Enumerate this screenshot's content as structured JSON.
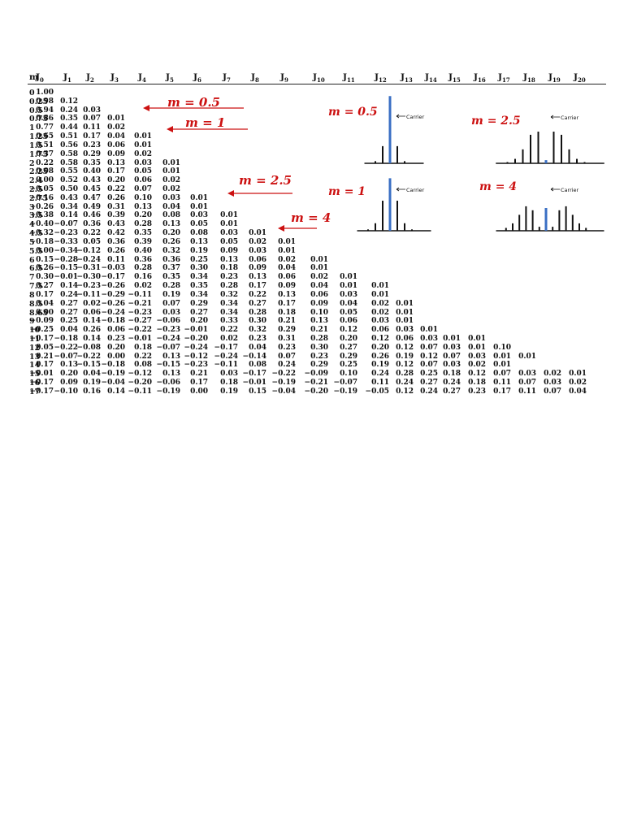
{
  "table": {
    "m_header": "m",
    "headers": [
      {
        "base": "J",
        "sub": "0"
      },
      {
        "base": "J",
        "sub": "1"
      },
      {
        "base": "J",
        "sub": "2"
      },
      {
        "base": "J",
        "sub": "3"
      },
      {
        "base": "J",
        "sub": "4"
      },
      {
        "base": "J",
        "sub": "5"
      },
      {
        "base": "J",
        "sub": "6"
      },
      {
        "base": "J",
        "sub": "7"
      },
      {
        "base": "J",
        "sub": "8"
      },
      {
        "base": "J",
        "sub": "9"
      },
      {
        "base": "J",
        "sub": "10"
      },
      {
        "base": "J",
        "sub": "11"
      },
      {
        "base": "J",
        "sub": "12"
      },
      {
        "base": "J",
        "sub": "13"
      },
      {
        "base": "J",
        "sub": "14"
      },
      {
        "base": "J",
        "sub": "15"
      },
      {
        "base": "J",
        "sub": "16"
      },
      {
        "base": "J",
        "sub": "17"
      },
      {
        "base": "J",
        "sub": "18"
      },
      {
        "base": "J",
        "sub": "19"
      },
      {
        "base": "J",
        "sub": "20"
      }
    ],
    "rows": [
      {
        "m": "0",
        "v": [
          "1.00"
        ]
      },
      {
        "m": "0.25",
        "v": [
          "0.98",
          "0.12"
        ]
      },
      {
        "m": "0.5",
        "v": [
          "0.94",
          "0.24",
          "0.03"
        ]
      },
      {
        "m": "0.75",
        "v": [
          "0.86",
          "0.35",
          "0.07",
          "0.01"
        ]
      },
      {
        "m": "1",
        "v": [
          "0.77",
          "0.44",
          "0.11",
          "0.02"
        ]
      },
      {
        "m": "1.25",
        "v": [
          "0.65",
          "0.51",
          "0.17",
          "0.04",
          "0.01"
        ]
      },
      {
        "m": "1.5",
        "v": [
          "0.51",
          "0.56",
          "0.23",
          "0.06",
          "0.01"
        ]
      },
      {
        "m": "1.75",
        "v": [
          "0.37",
          "0.58",
          "0.29",
          "0.09",
          "0.02"
        ]
      },
      {
        "m": "2",
        "v": [
          "0.22",
          "0.58",
          "0.35",
          "0.13",
          "0.03",
          "0.01"
        ]
      },
      {
        "m": "2.25",
        "v": [
          "0.08",
          "0.55",
          "0.40",
          "0.17",
          "0.05",
          "0.01"
        ]
      },
      {
        "m": "2.4",
        "v": [
          "0.00",
          "0.52",
          "0.43",
          "0.20",
          "0.06",
          "0.02"
        ]
      },
      {
        "m": "2.5",
        "v": [
          "−0.05",
          "0.50",
          "0.45",
          "0.22",
          "0.07",
          "0.02"
        ]
      },
      {
        "m": "2.75",
        "v": [
          "−0.16",
          "0.43",
          "0.47",
          "0.26",
          "0.10",
          "0.03",
          "0.01"
        ]
      },
      {
        "m": "3",
        "v": [
          "−0.26",
          "0.34",
          "0.49",
          "0.31",
          "0.13",
          "0.04",
          "0.01"
        ]
      },
      {
        "m": "3.5",
        "v": [
          "−0.38",
          "0.14",
          "0.46",
          "0.39",
          "0.20",
          "0.08",
          "0.03",
          "0.01"
        ]
      },
      {
        "m": "4",
        "v": [
          "−0.40",
          "−0.07",
          "0.36",
          "0.43",
          "0.28",
          "0.13",
          "0.05",
          "0.01"
        ]
      },
      {
        "m": "4.5",
        "v": [
          "−0.32",
          "−0.23",
          "0.22",
          "0.42",
          "0.35",
          "0.20",
          "0.08",
          "0.03",
          "0.01"
        ]
      },
      {
        "m": "5",
        "v": [
          "−0.18",
          "−0.33",
          "0.05",
          "0.36",
          "0.39",
          "0.26",
          "0.13",
          "0.05",
          "0.02",
          "0.01"
        ]
      },
      {
        "m": "5.5",
        "v": [
          "0.00",
          "−0.34",
          "−0.12",
          "0.26",
          "0.40",
          "0.32",
          "0.19",
          "0.09",
          "0.03",
          "0.01"
        ]
      },
      {
        "m": "6",
        "v": [
          "0.15",
          "−0.28",
          "−0.24",
          "0.11",
          "0.36",
          "0.36",
          "0.25",
          "0.13",
          "0.06",
          "0.02",
          "0.01"
        ]
      },
      {
        "m": "6.5",
        "v": [
          "0.26",
          "−0.15",
          "−0.31",
          "−0.03",
          "0.28",
          "0.37",
          "0.30",
          "0.18",
          "0.09",
          "0.04",
          "0.01"
        ]
      },
      {
        "m": "7",
        "v": [
          "0.30",
          "−0.01",
          "−0.30",
          "−0.17",
          "0.16",
          "0.35",
          "0.34",
          "0.23",
          "0.13",
          "0.06",
          "0.02",
          "0.01"
        ]
      },
      {
        "m": "7.5",
        "v": [
          "0.27",
          "0.14",
          "−0.23",
          "−0.26",
          "0.02",
          "0.28",
          "0.35",
          "0.28",
          "0.17",
          "0.09",
          "0.04",
          "0.01",
          "0.01"
        ]
      },
      {
        "m": "8",
        "v": [
          "0.17",
          "0.24",
          "−0.11",
          "−0.29",
          "−0.11",
          "0.19",
          "0.34",
          "0.32",
          "0.22",
          "0.13",
          "0.06",
          "0.03",
          "0.01"
        ]
      },
      {
        "m": "8.5",
        "v": [
          "0.04",
          "0.27",
          "0.02",
          "−0.26",
          "−0.21",
          "0.07",
          "0.29",
          "0.34",
          "0.27",
          "0.17",
          "0.09",
          "0.04",
          "0.02",
          "0.01"
        ]
      },
      {
        "m": "8.65",
        "v": [
          "0.00",
          "0.27",
          "0.06",
          "−0.24",
          "−0.23",
          "0.03",
          "0.27",
          "0.34",
          "0.28",
          "0.18",
          "0.10",
          "0.05",
          "0.02",
          "0.01"
        ]
      },
      {
        "m": "9",
        "v": [
          "−0.09",
          "0.25",
          "0.14",
          "−0.18",
          "−0.27",
          "−0.06",
          "0.20",
          "0.33",
          "0.30",
          "0.21",
          "0.13",
          "0.06",
          "0.03",
          "0.01"
        ]
      },
      {
        "m": "10",
        "v": [
          "−0.25",
          "0.04",
          "0.26",
          "0.06",
          "−0.22",
          "−0.23",
          "−0.01",
          "0.22",
          "0.32",
          "0.29",
          "0.21",
          "0.12",
          "0.06",
          "0.03",
          "0.01"
        ]
      },
      {
        "m": "11",
        "v": [
          "−0.17",
          "−0.18",
          "0.14",
          "0.23",
          "−0.01",
          "−0.24",
          "−0.20",
          "0.02",
          "0.23",
          "0.31",
          "0.28",
          "0.20",
          "0.12",
          "0.06",
          "0.03",
          "0.01",
          "0.01"
        ]
      },
      {
        "m": "12",
        "v": [
          "0.05",
          "−0.22",
          "−0.08",
          "0.20",
          "0.18",
          "−0.07",
          "−0.24",
          "−0.17",
          "0.04",
          "0.23",
          "0.30",
          "0.27",
          "0.20",
          "0.12",
          "0.07",
          "0.03",
          "0.01",
          "0.10"
        ]
      },
      {
        "m": "13",
        "v": [
          "0.21",
          "−0.07",
          "−0.22",
          "0.00",
          "0.22",
          "0.13",
          "−0.12",
          "−0.24",
          "−0.14",
          "0.07",
          "0.23",
          "0.29",
          "0.26",
          "0.19",
          "0.12",
          "0.07",
          "0.03",
          "0.01",
          "0.01"
        ]
      },
      {
        "m": "14",
        "v": [
          "0.17",
          "0.13",
          "−0.15",
          "−0.18",
          "0.08",
          "−0.15",
          "−0.23",
          "−0.11",
          "0.08",
          "0.24",
          "0.29",
          "0.25",
          "0.19",
          "0.12",
          "0.07",
          "0.03",
          "0.02",
          "0.01"
        ]
      },
      {
        "m": "15",
        "v": [
          "−0.01",
          "0.20",
          "0.04",
          "−0.19",
          "−0.12",
          "0.13",
          "0.21",
          "0.03",
          "−0.17",
          "−0.22",
          "−0.09",
          "0.10",
          "0.24",
          "0.28",
          "0.25",
          "0.18",
          "0.12",
          "0.07",
          "0.03",
          "0.02",
          "0.01"
        ]
      },
      {
        "m": "16",
        "v": [
          "−0.17",
          "0.09",
          "0.19",
          "−0.04",
          "−0.20",
          "−0.06",
          "0.17",
          "0.18",
          "−0.01",
          "−0.19",
          "−0.21",
          "−0.07",
          "0.11",
          "0.24",
          "0.27",
          "0.24",
          "0.18",
          "0.11",
          "0.07",
          "0.03",
          "0.02"
        ]
      },
      {
        "m": "17",
        "v": [
          "−0.17",
          "−0.10",
          "0.16",
          "0.14",
          "−0.11",
          "−0.19",
          "0.00",
          "0.19",
          "0.15",
          "−0.04",
          "−0.20",
          "−0.19",
          "−0.05",
          "0.12",
          "0.24",
          "0.27",
          "0.23",
          "0.17",
          "0.11",
          "0.07",
          "0.04"
        ]
      }
    ]
  },
  "annotations": [
    {
      "label": "m = 0.5",
      "points_to_row": "0.5"
    },
    {
      "label": "m = 1",
      "points_to_row": "1"
    },
    {
      "label": "m = 2.5",
      "points_to_row": "2.5"
    },
    {
      "label": "m = 4",
      "points_to_row": "4"
    }
  ],
  "spectra": [
    {
      "label": "m = 0.5",
      "carrier_label": "Carrier",
      "line_heights": [
        0.03,
        0.24,
        0.94,
        0.24,
        0.03
      ]
    },
    {
      "label": "m = 2.5",
      "carrier_label": "Carrier",
      "line_heights": [
        0.02,
        0.07,
        0.22,
        0.45,
        0.5,
        0.05,
        0.5,
        0.45,
        0.22,
        0.07,
        0.02
      ]
    },
    {
      "label": "m = 1",
      "carrier_label": "Carrier",
      "line_heights": [
        0.02,
        0.11,
        0.44,
        0.77,
        0.44,
        0.11,
        0.02
      ]
    },
    {
      "label": "m = 4",
      "carrier_label": "Carrier",
      "line_heights": [
        0.05,
        0.13,
        0.28,
        0.43,
        0.36,
        0.07,
        0.4,
        0.07,
        0.36,
        0.43,
        0.28,
        0.13,
        0.05
      ]
    }
  ],
  "colors": {
    "annotation": "#cc1111",
    "carrier_line": "#3a6fc4",
    "ink": "#111111"
  }
}
